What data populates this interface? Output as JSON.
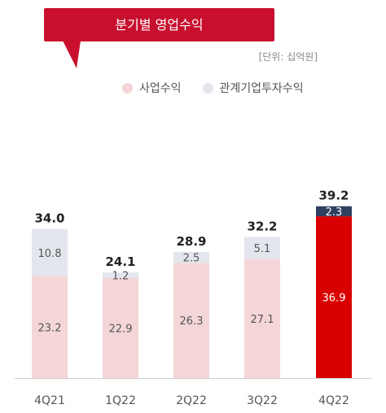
{
  "title": "분기별 영업수익",
  "unit": "[단위: 십억원]",
  "colors": {
    "operating": "#f4d6d8",
    "equity": "#e3e6ec",
    "highlight_operating": "#d90000",
    "highlight_equity": "#2f3f5f",
    "title_bg": "#c8102e"
  },
  "chart_data": {
    "type": "bar",
    "stacked": true,
    "categories": [
      "4Q21",
      "1Q22",
      "2Q22",
      "3Q22",
      "4Q22"
    ],
    "series": [
      {
        "name": "사업수익",
        "values": [
          23.2,
          22.9,
          26.3,
          27.1,
          36.9
        ]
      },
      {
        "name": "관계기업투자수익",
        "values": [
          10.8,
          1.2,
          2.5,
          5.1,
          2.3
        ]
      }
    ],
    "totals": [
      34.0,
      24.1,
      28.9,
      32.2,
      39.2
    ],
    "total_labels": [
      "34.0",
      "24.1",
      "28.9",
      "32.2",
      "39.2"
    ],
    "highlight_category": "4Q22",
    "ylim": [
      0,
      40
    ],
    "legend_position": "top",
    "grid": false
  }
}
